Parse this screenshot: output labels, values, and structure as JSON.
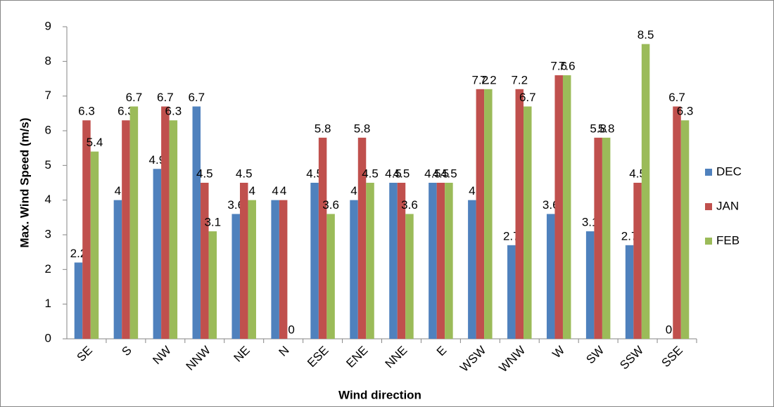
{
  "chart_data": {
    "type": "bar",
    "x_label": "Wind direction",
    "y_label": "Max. Wind Speed (m/s)",
    "categories": [
      "SE",
      "S",
      "NW",
      "NNW",
      "NE",
      "N",
      "ESE",
      "ENE",
      "NNE",
      "E",
      "WSW",
      "WNW",
      "W",
      "SW",
      "SSW",
      "SSE"
    ],
    "series": [
      {
        "name": "DEC",
        "color": "#4f81bd",
        "values": [
          2.2,
          4,
          4.9,
          6.7,
          3.6,
          4,
          4.5,
          4,
          4.5,
          4.5,
          4,
          2.7,
          3.6,
          3.1,
          2.7,
          0
        ]
      },
      {
        "name": "JAN",
        "color": "#c0504d",
        "values": [
          6.3,
          6.3,
          6.7,
          4.5,
          4.5,
          4,
          5.8,
          5.8,
          4.5,
          4.5,
          7.2,
          7.2,
          7.6,
          5.8,
          4.5,
          6.7
        ]
      },
      {
        "name": "FEB",
        "color": "#9bbb59",
        "values": [
          5.4,
          6.7,
          6.3,
          3.1,
          4,
          0,
          3.6,
          4.5,
          3.6,
          4.5,
          7.2,
          6.7,
          7.6,
          5.8,
          8.5,
          6.3
        ]
      }
    ],
    "ylim": [
      0,
      9
    ],
    "yticks": [
      0,
      1,
      2,
      3,
      4,
      5,
      6,
      7,
      8,
      9
    ],
    "grid": false,
    "legend": "right"
  }
}
